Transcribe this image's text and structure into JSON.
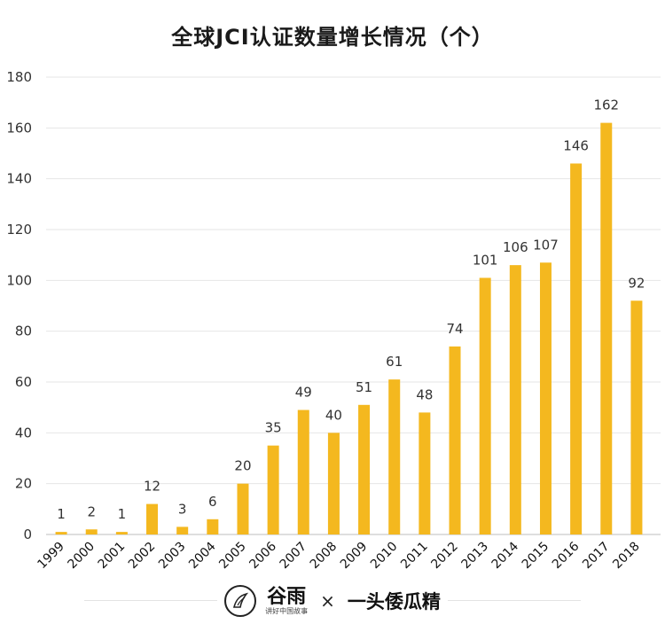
{
  "chart_data": {
    "type": "bar",
    "title": "全球JCI认证数量增长情况（个）",
    "categories": [
      "1999",
      "2000",
      "2001",
      "2002",
      "2003",
      "2004",
      "2005",
      "2006",
      "2007",
      "2008",
      "2009",
      "2010",
      "2011",
      "2012",
      "2013",
      "2014",
      "2015",
      "2016",
      "2017",
      "2018"
    ],
    "values": [
      1,
      2,
      1,
      12,
      3,
      6,
      20,
      35,
      49,
      40,
      51,
      61,
      48,
      74,
      101,
      106,
      107,
      146,
      162,
      92
    ],
    "ylim": [
      0,
      180
    ],
    "yticks": [
      0,
      20,
      40,
      60,
      80,
      100,
      120,
      140,
      160,
      180
    ],
    "xlabel": "",
    "ylabel": "",
    "grid": true,
    "bar_color": "#F4B81F"
  },
  "footer": {
    "logo_name": "谷雨",
    "logo_subtitle": "讲好中国故事",
    "separator": "×",
    "partner": "一头倭瓜精"
  }
}
